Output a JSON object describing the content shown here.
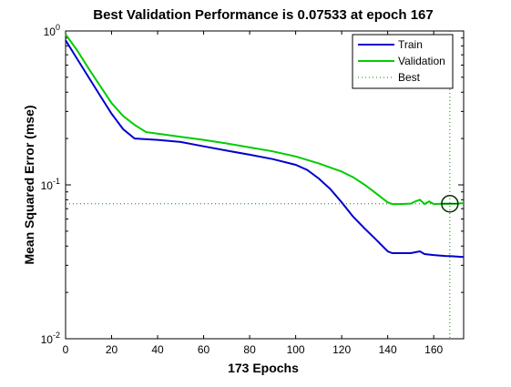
{
  "chart_data": {
    "type": "line",
    "title": "Best Validation Performance is 0.07533 at epoch 167",
    "xlabel": "173 Epochs",
    "ylabel": "Mean Squared Error  (mse)",
    "xlim": [
      0,
      173
    ],
    "ylim": [
      0.01,
      1
    ],
    "yscale": "log",
    "grid": false,
    "legend_position": "top-right",
    "x_ticks": [
      0,
      20,
      40,
      60,
      80,
      100,
      120,
      140,
      160
    ],
    "y_ticks": [
      {
        "value": 1,
        "base": "10",
        "exp": "0"
      },
      {
        "value": 0.1,
        "base": "10",
        "exp": "-1"
      },
      {
        "value": 0.01,
        "base": "10",
        "exp": "-2"
      }
    ],
    "series": [
      {
        "name": "Train",
        "color": "#0000cc",
        "style": "solid",
        "x": [
          0,
          5,
          10,
          15,
          20,
          25,
          30,
          35,
          40,
          50,
          60,
          70,
          80,
          90,
          100,
          105,
          110,
          115,
          120,
          125,
          130,
          135,
          140,
          142,
          145,
          150,
          152,
          154,
          156,
          160,
          165,
          167,
          170,
          173
        ],
        "y": [
          0.87,
          0.66,
          0.5,
          0.38,
          0.29,
          0.23,
          0.2,
          0.198,
          0.196,
          0.19,
          0.178,
          0.167,
          0.157,
          0.147,
          0.135,
          0.125,
          0.11,
          0.094,
          0.077,
          0.062,
          0.052,
          0.044,
          0.037,
          0.036,
          0.036,
          0.036,
          0.0365,
          0.037,
          0.0355,
          0.035,
          0.0345,
          0.0344,
          0.0342,
          0.034
        ]
      },
      {
        "name": "Validation",
        "color": "#00cc00",
        "style": "solid",
        "x": [
          0,
          5,
          10,
          15,
          20,
          25,
          30,
          35,
          40,
          50,
          60,
          70,
          80,
          90,
          100,
          110,
          120,
          125,
          130,
          135,
          140,
          142,
          145,
          150,
          152,
          154,
          156,
          158,
          160,
          165,
          167,
          170,
          173
        ],
        "y": [
          0.95,
          0.75,
          0.57,
          0.44,
          0.34,
          0.28,
          0.245,
          0.22,
          0.215,
          0.205,
          0.196,
          0.186,
          0.175,
          0.165,
          0.153,
          0.138,
          0.122,
          0.112,
          0.1,
          0.088,
          0.077,
          0.075,
          0.075,
          0.0755,
          0.078,
          0.08,
          0.075,
          0.078,
          0.075,
          0.0755,
          0.07533,
          0.0755,
          0.076
        ]
      }
    ],
    "best": {
      "name": "Best",
      "color": "#008800",
      "style": "dotted",
      "epoch": 167,
      "value": 0.07533
    }
  }
}
